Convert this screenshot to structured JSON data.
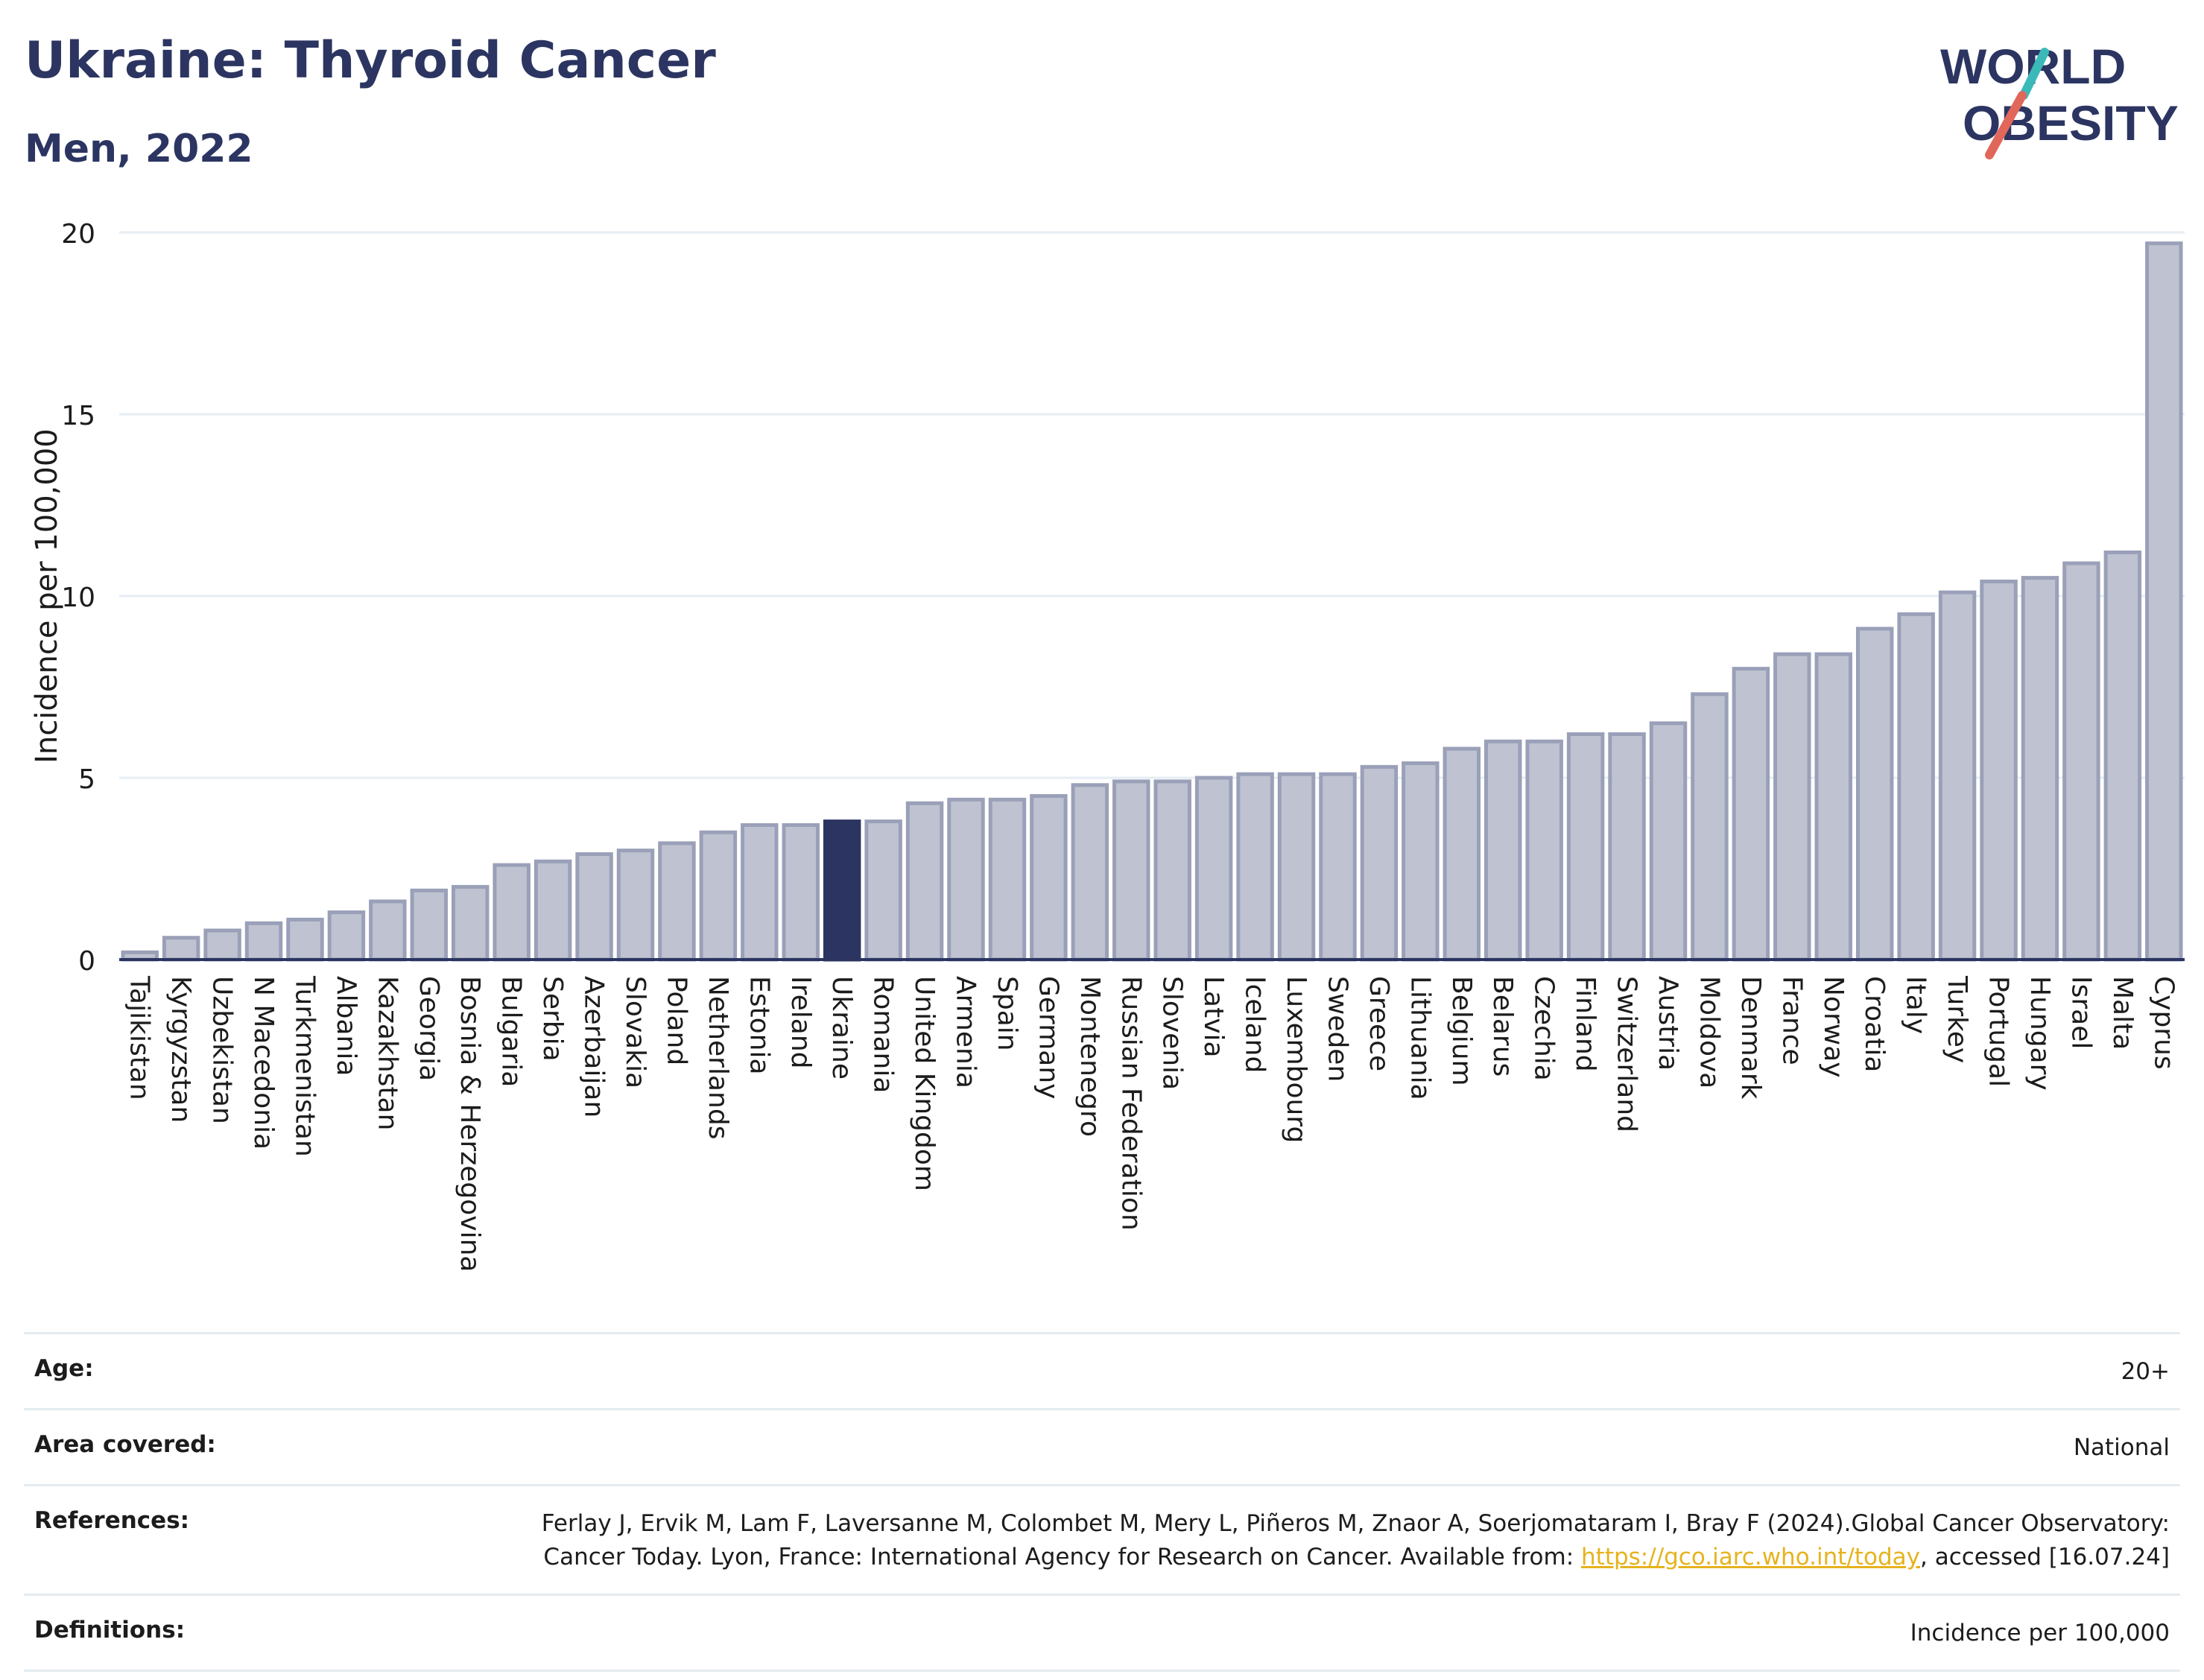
{
  "header": {
    "title": "Ukraine: Thyroid Cancer",
    "subtitle": "Men, 2022"
  },
  "logo": {
    "line1": "WORLD",
    "line2": "OBESITY",
    "colors": {
      "text": "#2c3561",
      "slash_teal": "#3bb9b9",
      "slash_red": "#e0675a"
    }
  },
  "chart_data": {
    "type": "bar",
    "ylabel": "Incidence per 100,000",
    "ylim": [
      0,
      20
    ],
    "yticks": [
      0,
      5,
      10,
      15,
      20
    ],
    "highlight": "Ukraine",
    "colors": {
      "bar": "#bfc3d1",
      "bar_edge": "#9aa0b8",
      "highlight": "#2c3561",
      "grid": "#e6edf3",
      "axis": "#2c3561"
    },
    "categories": [
      "Tajikistan",
      "Kyrgyzstan",
      "Uzbekistan",
      "N Macedonia",
      "Turkmenistan",
      "Albania",
      "Kazakhstan",
      "Georgia",
      "Bosnia & Herzegovina",
      "Bulgaria",
      "Serbia",
      "Azerbaijan",
      "Slovakia",
      "Poland",
      "Netherlands",
      "Estonia",
      "Ireland",
      "Ukraine",
      "Romania",
      "United Kingdom",
      "Armenia",
      "Spain",
      "Germany",
      "Montenegro",
      "Russian Federation",
      "Slovenia",
      "Latvia",
      "Iceland",
      "Luxembourg",
      "Sweden",
      "Greece",
      "Lithuania",
      "Belgium",
      "Belarus",
      "Czechia",
      "Finland",
      "Switzerland",
      "Austria",
      "Moldova",
      "Denmark",
      "France",
      "Norway",
      "Croatia",
      "Italy",
      "Turkey",
      "Portugal",
      "Hungary",
      "Israel",
      "Malta",
      "Cyprus"
    ],
    "values": [
      0.2,
      0.6,
      0.8,
      1.0,
      1.1,
      1.3,
      1.6,
      1.9,
      2.0,
      2.6,
      2.7,
      2.9,
      3.0,
      3.2,
      3.5,
      3.7,
      3.7,
      3.8,
      3.8,
      4.3,
      4.4,
      4.4,
      4.5,
      4.8,
      4.9,
      4.9,
      5.0,
      5.1,
      5.1,
      5.1,
      5.3,
      5.4,
      5.8,
      6.0,
      6.0,
      6.2,
      6.2,
      6.5,
      7.3,
      8.0,
      8.4,
      8.4,
      9.1,
      9.5,
      10.1,
      10.4,
      10.5,
      10.9,
      11.2,
      19.7
    ]
  },
  "info": {
    "age_label": "Age:",
    "age_value": "20+",
    "area_label": "Area covered:",
    "area_value": "National",
    "ref_label": "References:",
    "ref_text_1": "Ferlay J, Ervik M, Lam F, Laversanne M, Colombet M, Mery L, Piñeros M, Znaor A, Soerjomataram I, Bray F (2024).Global Cancer Observatory: Cancer Today. Lyon, France: International Agency for Research on Cancer. Available from: ",
    "ref_link": "https://gco.iarc.who.int/today",
    "ref_text_2": ", accessed [16.07.24]",
    "def_label": "Definitions:",
    "def_value": "Incidence per 100,000"
  }
}
